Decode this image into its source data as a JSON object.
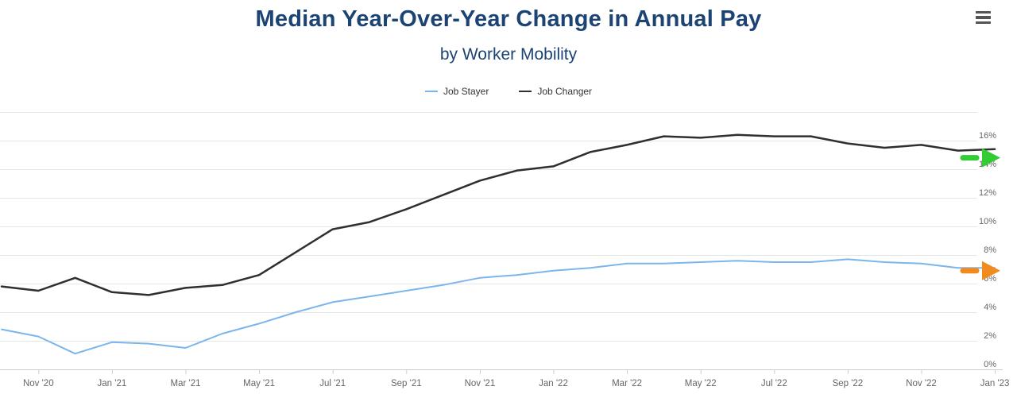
{
  "header": {
    "title": "Median Year-Over-Year Change in Annual Pay",
    "subtitle": "by Worker Mobility"
  },
  "menu": {
    "icon": "hamburger-menu-icon"
  },
  "chart_data": {
    "type": "line",
    "title": "Median Year-Over-Year Change in Annual Pay",
    "subtitle": "by Worker Mobility",
    "x": [
      "Oct '20",
      "Nov '20",
      "Dec '20",
      "Jan '21",
      "Feb '21",
      "Mar '21",
      "Apr '21",
      "May '21",
      "Jun '21",
      "Jul '21",
      "Aug '21",
      "Sep '21",
      "Oct '21",
      "Nov '21",
      "Dec '21",
      "Jan '22",
      "Feb '22",
      "Mar '22",
      "Apr '22",
      "May '22",
      "Jun '22",
      "Jul '22",
      "Aug '22",
      "Sep '22",
      "Oct '22",
      "Nov '22",
      "Dec '22",
      "Jan '23"
    ],
    "x_tick_labels": [
      "Nov '20",
      "Jan '21",
      "Mar '21",
      "May '21",
      "Jul '21",
      "Sep '21",
      "Nov '21",
      "Jan '22",
      "Mar '22",
      "May '22",
      "Jul '22",
      "Sep '22",
      "Nov '22",
      "Jan '23"
    ],
    "y_tick_labels": [
      "0%",
      "2%",
      "4%",
      "6%",
      "8%",
      "10%",
      "12%",
      "14%",
      "16%"
    ],
    "ylim": [
      0,
      18
    ],
    "y_unit": "%",
    "grid": "horizontal",
    "legend_position": "top",
    "series": [
      {
        "name": "Job Stayer",
        "color": "#7cb5ec",
        "values": [
          2.8,
          2.3,
          1.1,
          1.9,
          1.8,
          1.5,
          2.5,
          3.2,
          4.0,
          4.7,
          5.1,
          5.5,
          5.9,
          6.4,
          6.6,
          6.9,
          7.1,
          7.4,
          7.4,
          7.5,
          7.6,
          7.5,
          7.5,
          7.7,
          7.5,
          7.4,
          7.1,
          7.1
        ]
      },
      {
        "name": "Job Changer",
        "color": "#2f2f2f",
        "values": [
          5.8,
          5.5,
          6.4,
          5.4,
          5.2,
          5.7,
          5.9,
          6.6,
          8.2,
          9.8,
          10.3,
          11.2,
          12.2,
          13.2,
          13.9,
          14.2,
          15.2,
          15.7,
          16.3,
          16.2,
          16.4,
          16.3,
          16.3,
          15.8,
          15.5,
          15.7,
          15.3,
          15.4
        ]
      }
    ],
    "annotations": [
      {
        "id": "job-changer-end-arrow",
        "shape": "right-arrow",
        "color": "#33cc33",
        "at_value_pct": 14.8
      },
      {
        "id": "job-stayer-end-arrow",
        "shape": "right-arrow",
        "color": "#f28b1e",
        "at_value_pct": 6.9
      }
    ]
  }
}
